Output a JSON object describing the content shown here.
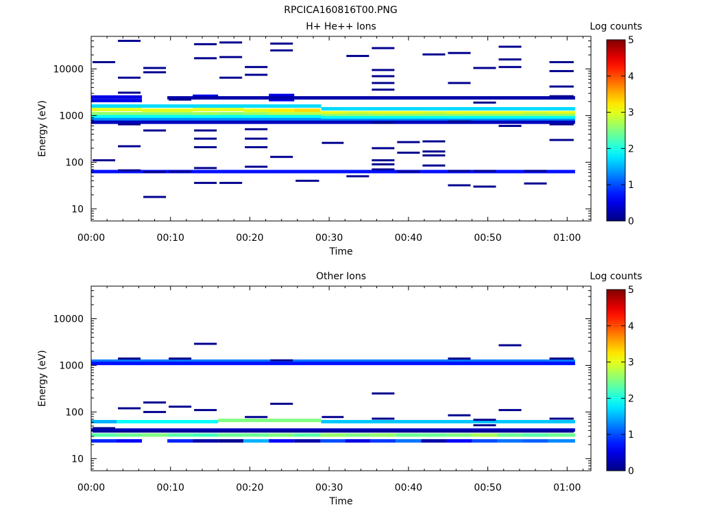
{
  "title": "RPCICA160816T00.PNG",
  "chart_data": [
    {
      "type": "heatmap",
      "title": "H+ He++ Ions",
      "xlabel": "Time",
      "ylabel": "Energy (eV)",
      "x_tick_labels": [
        "00:00",
        "00:10",
        "00:20",
        "00:30",
        "00:40",
        "00:50",
        "01:00"
      ],
      "x_ticks_min": [
        0,
        10,
        20,
        30,
        40,
        50,
        60
      ],
      "xlim_min": [
        0,
        63
      ],
      "y_tick_labels": [
        "10",
        "100",
        "1000",
        "10000"
      ],
      "y_ticks": [
        10,
        100,
        1000,
        10000
      ],
      "ylim": [
        5.5,
        50000
      ],
      "y_scale": "log",
      "colorbar": {
        "label": "Log counts",
        "ticks": [
          "0",
          "1",
          "2",
          "3",
          "4",
          "5"
        ],
        "range": [
          0,
          5
        ]
      },
      "cells": [
        [
          0,
          3.2,
          1350,
          3
        ],
        [
          3.2,
          6.4,
          1350,
          3
        ],
        [
          6.4,
          9.6,
          1300,
          3
        ],
        [
          9.6,
          12.8,
          1300,
          3
        ],
        [
          12.8,
          16,
          1350,
          3
        ],
        [
          16,
          19.2,
          1350,
          3
        ],
        [
          19.2,
          22.4,
          1300,
          3
        ],
        [
          22.4,
          25.6,
          1300,
          3.2
        ],
        [
          25.6,
          28.9,
          1300,
          3.3
        ],
        [
          28.9,
          32,
          1150,
          3
        ],
        [
          32,
          35.2,
          1150,
          2.9
        ],
        [
          35.2,
          38.4,
          1150,
          3
        ],
        [
          38.4,
          41.6,
          1150,
          3
        ],
        [
          41.6,
          44.8,
          1150,
          2.9
        ],
        [
          44.8,
          48,
          1150,
          3
        ],
        [
          48,
          51.2,
          1150,
          3
        ],
        [
          51.2,
          54.4,
          1150,
          3
        ],
        [
          54.4,
          57.6,
          1150,
          2.9
        ],
        [
          57.6,
          61,
          1150,
          3
        ],
        [
          0,
          3.2,
          1100,
          2.6
        ],
        [
          3.2,
          6.4,
          1100,
          2.6
        ],
        [
          6.4,
          9.6,
          1100,
          2.6
        ],
        [
          9.6,
          12.8,
          1100,
          2.6
        ],
        [
          12.8,
          16,
          1100,
          2.7
        ],
        [
          16,
          19.2,
          1100,
          2.6
        ],
        [
          19.2,
          22.4,
          1100,
          2.7
        ],
        [
          22.4,
          25.6,
          1100,
          2.8
        ],
        [
          25.6,
          28.9,
          1100,
          2.8
        ],
        [
          28.9,
          32,
          1000,
          2.6
        ],
        [
          32,
          35.2,
          1000,
          2.6
        ],
        [
          35.2,
          38.4,
          1000,
          2.6
        ],
        [
          38.4,
          41.6,
          1000,
          2.6
        ],
        [
          41.6,
          44.8,
          1000,
          2.6
        ],
        [
          44.8,
          48,
          1000,
          2.6
        ],
        [
          48,
          51.2,
          1000,
          2.6
        ],
        [
          51.2,
          54.4,
          1000,
          2.6
        ],
        [
          54.4,
          57.6,
          1000,
          2.6
        ],
        [
          57.6,
          61,
          1000,
          2.6
        ],
        [
          0,
          29,
          1600,
          1.7
        ],
        [
          29,
          61,
          1400,
          1.7
        ],
        [
          0,
          29,
          950,
          1.9
        ],
        [
          29,
          61,
          900,
          1.9
        ],
        [
          0,
          29,
          820,
          1.3
        ],
        [
          29,
          61,
          790,
          1.3
        ],
        [
          0,
          61,
          720,
          0.3
        ],
        [
          0,
          3.2,
          2500,
          0.5
        ],
        [
          0,
          3.2,
          2100,
          0.5
        ],
        [
          3.2,
          6.4,
          2500,
          0.5
        ],
        [
          3.2,
          6.4,
          2100,
          0.5
        ],
        [
          12.8,
          16,
          2600,
          0.5
        ],
        [
          22.4,
          25.6,
          2700,
          0.5
        ],
        [
          22.4,
          25.6,
          2200,
          0.5
        ],
        [
          9.6,
          61,
          2400,
          0.2
        ],
        [
          0,
          61,
          63,
          0.7
        ]
      ],
      "sparse_marks": [
        [
          0,
          3.2,
          14000
        ],
        [
          0,
          3.2,
          110
        ],
        [
          3.2,
          6.4,
          40000
        ],
        [
          3.2,
          6.4,
          6500
        ],
        [
          3.2,
          6.4,
          3100
        ],
        [
          3.2,
          6.4,
          650
        ],
        [
          3.2,
          6.4,
          220
        ],
        [
          3.2,
          6.4,
          67
        ],
        [
          6.4,
          9.6,
          10500
        ],
        [
          6.4,
          9.6,
          8500
        ],
        [
          6.4,
          9.6,
          480
        ],
        [
          6.4,
          9.6,
          62
        ],
        [
          6.4,
          9.6,
          18
        ],
        [
          9.6,
          12.8,
          2200
        ],
        [
          9.6,
          12.8,
          63
        ],
        [
          12.8,
          16,
          34000
        ],
        [
          12.8,
          16,
          17000
        ],
        [
          12.8,
          16,
          480
        ],
        [
          12.8,
          16,
          320
        ],
        [
          12.8,
          16,
          210
        ],
        [
          12.8,
          16,
          75
        ],
        [
          12.8,
          16,
          36
        ],
        [
          16,
          19.2,
          37000
        ],
        [
          16,
          19.2,
          18000
        ],
        [
          16,
          19.2,
          6500
        ],
        [
          16,
          19.2,
          36
        ],
        [
          19.2,
          22.4,
          11000
        ],
        [
          19.2,
          22.4,
          7500
        ],
        [
          19.2,
          22.4,
          510
        ],
        [
          19.2,
          22.4,
          320
        ],
        [
          19.2,
          22.4,
          210
        ],
        [
          19.2,
          22.4,
          80
        ],
        [
          22.4,
          25.6,
          35000
        ],
        [
          22.4,
          25.6,
          25000
        ],
        [
          22.4,
          25.6,
          130
        ],
        [
          25.6,
          28.9,
          40
        ],
        [
          28.9,
          32,
          260
        ],
        [
          32,
          35.2,
          19000
        ],
        [
          32,
          35.2,
          50
        ],
        [
          35.2,
          38.4,
          28000
        ],
        [
          35.2,
          38.4,
          9500
        ],
        [
          35.2,
          38.4,
          7000
        ],
        [
          35.2,
          38.4,
          5000
        ],
        [
          35.2,
          38.4,
          3600
        ],
        [
          35.2,
          38.4,
          700
        ],
        [
          35.2,
          38.4,
          200
        ],
        [
          35.2,
          38.4,
          110
        ],
        [
          35.2,
          38.4,
          90
        ],
        [
          35.2,
          38.4,
          70
        ],
        [
          38.4,
          41.6,
          270
        ],
        [
          38.4,
          41.6,
          160
        ],
        [
          38.4,
          41.6,
          63
        ],
        [
          41.6,
          44.8,
          20500
        ],
        [
          41.6,
          44.8,
          280
        ],
        [
          41.6,
          44.8,
          170
        ],
        [
          41.6,
          44.8,
          140
        ],
        [
          41.6,
          44.8,
          85
        ],
        [
          44.8,
          48,
          22000
        ],
        [
          44.8,
          48,
          5000
        ],
        [
          44.8,
          48,
          750
        ],
        [
          44.8,
          48,
          65
        ],
        [
          44.8,
          48,
          32
        ],
        [
          48,
          51.2,
          10500
        ],
        [
          48,
          51.2,
          1900
        ],
        [
          48,
          51.2,
          65
        ],
        [
          48,
          51.2,
          30
        ],
        [
          51.2,
          54.4,
          30000
        ],
        [
          51.2,
          54.4,
          16000
        ],
        [
          51.2,
          54.4,
          11000
        ],
        [
          51.2,
          54.4,
          600
        ],
        [
          54.4,
          57.6,
          65
        ],
        [
          54.4,
          57.6,
          35
        ],
        [
          57.6,
          61,
          14000
        ],
        [
          57.6,
          61,
          9000
        ],
        [
          57.6,
          61,
          4200
        ],
        [
          57.6,
          61,
          2600
        ],
        [
          57.6,
          61,
          650
        ],
        [
          57.6,
          61,
          300
        ]
      ]
    },
    {
      "type": "heatmap",
      "title": "Other Ions",
      "xlabel": "Time",
      "ylabel": "Energy (eV)",
      "x_tick_labels": [
        "00:00",
        "00:10",
        "00:20",
        "00:30",
        "00:40",
        "00:50",
        "01:00"
      ],
      "x_ticks_min": [
        0,
        10,
        20,
        30,
        40,
        50,
        60
      ],
      "xlim_min": [
        0,
        63
      ],
      "y_tick_labels": [
        "10",
        "100",
        "1000",
        "10000"
      ],
      "y_ticks": [
        10,
        100,
        1000,
        10000
      ],
      "ylim": [
        5.5,
        50000
      ],
      "y_scale": "log",
      "colorbar": {
        "label": "Log counts",
        "ticks": [
          "0",
          "1",
          "2",
          "3",
          "4",
          "5"
        ],
        "range": [
          0,
          5
        ]
      },
      "cells": [
        [
          0,
          61,
          1230,
          1.2
        ],
        [
          0,
          61,
          1100,
          0.7
        ],
        [
          0,
          3.2,
          62,
          1.5
        ],
        [
          3.2,
          16,
          62,
          1.9
        ],
        [
          16,
          29,
          66,
          2.5
        ],
        [
          29,
          61,
          62,
          1.6
        ],
        [
          0,
          61,
          41,
          0.3
        ],
        [
          0,
          3.2,
          32,
          2.3
        ],
        [
          3.2,
          6.4,
          32,
          2.4
        ],
        [
          6.4,
          9.6,
          32,
          2.5
        ],
        [
          9.6,
          12.8,
          32,
          2.3
        ],
        [
          12.8,
          16,
          32,
          2.2
        ],
        [
          16,
          19.2,
          32,
          2.4
        ],
        [
          19.2,
          22.4,
          32,
          2.4
        ],
        [
          22.4,
          25.6,
          32,
          2.5
        ],
        [
          25.6,
          28.9,
          32,
          2.3
        ],
        [
          28.9,
          32,
          32,
          2.6
        ],
        [
          32,
          35.2,
          32,
          2.5
        ],
        [
          35.2,
          38.4,
          32,
          2.6
        ],
        [
          38.4,
          41.6,
          32,
          2.4
        ],
        [
          41.6,
          44.8,
          32,
          2.4
        ],
        [
          44.8,
          48,
          32,
          2.5
        ],
        [
          48,
          51.2,
          32,
          2.7
        ],
        [
          51.2,
          54.4,
          32,
          2.4
        ],
        [
          54.4,
          57.6,
          32,
          2.3
        ],
        [
          57.6,
          61,
          32,
          2.4
        ],
        [
          0,
          3.2,
          24,
          0.8
        ],
        [
          3.2,
          6.4,
          24,
          0.6
        ],
        [
          9.6,
          12.8,
          24,
          0.8
        ],
        [
          12.8,
          16,
          24,
          0.2
        ],
        [
          16,
          19.2,
          24,
          0.1
        ],
        [
          19.2,
          22.4,
          24,
          1.5
        ],
        [
          22.4,
          25.6,
          24,
          0.6
        ],
        [
          25.6,
          28.9,
          24,
          0.2
        ],
        [
          28.9,
          32,
          24,
          1.0
        ],
        [
          32,
          35.2,
          24,
          0.5
        ],
        [
          35.2,
          38.4,
          24,
          0.9
        ],
        [
          38.4,
          41.6,
          24,
          1.2
        ],
        [
          41.6,
          44.8,
          24,
          0.2
        ],
        [
          44.8,
          48,
          24,
          0.6
        ],
        [
          48,
          51.2,
          24,
          1.0
        ],
        [
          51.2,
          54.4,
          24,
          1.2
        ],
        [
          54.4,
          57.6,
          24,
          1.1
        ],
        [
          57.6,
          61,
          24,
          1.3
        ]
      ],
      "sparse_marks": [
        [
          3.2,
          6.4,
          1400
        ],
        [
          9.6,
          12.8,
          1400
        ],
        [
          12.8,
          16,
          2900
        ],
        [
          22.4,
          25.6,
          1280
        ],
        [
          3.2,
          6.4,
          120
        ],
        [
          6.4,
          9.6,
          160
        ],
        [
          6.4,
          9.6,
          100
        ],
        [
          9.6,
          12.8,
          130
        ],
        [
          12.8,
          16,
          110
        ],
        [
          22.4,
          25.6,
          150
        ],
        [
          19.2,
          22.4,
          78
        ],
        [
          28.9,
          32,
          78
        ],
        [
          35.2,
          38.4,
          250
        ],
        [
          35.2,
          38.4,
          72
        ],
        [
          44.8,
          48,
          1400
        ],
        [
          44.8,
          48,
          85
        ],
        [
          48,
          51.2,
          68
        ],
        [
          48,
          51.2,
          52
        ],
        [
          51.2,
          54.4,
          2700
        ],
        [
          51.2,
          54.4,
          110
        ],
        [
          57.6,
          61,
          1400
        ],
        [
          57.6,
          61,
          72
        ],
        [
          0,
          3.2,
          45
        ],
        [
          0,
          61,
          38
        ]
      ]
    }
  ]
}
